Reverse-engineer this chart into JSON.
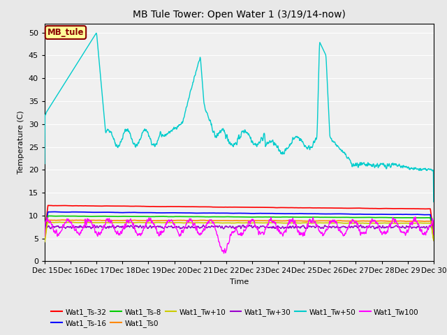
{
  "title": "MB Tule Tower: Open Water 1 (3/19/14-now)",
  "xlabel": "Time",
  "ylabel": "Temperature (C)",
  "ylim": [
    0,
    52
  ],
  "yticks": [
    0,
    5,
    10,
    15,
    20,
    25,
    30,
    35,
    40,
    45,
    50
  ],
  "bg_color": "#e8e8e8",
  "plot_bg": "#f0f0f0",
  "annotation_box": {
    "text": "MB_tule",
    "facecolor": "#ffff99",
    "edgecolor": "#8B0000",
    "textcolor": "#8B0000"
  },
  "x_start": 15,
  "x_end": 30,
  "x_ticks": [
    15,
    16,
    17,
    18,
    19,
    20,
    21,
    22,
    23,
    24,
    25,
    26,
    27,
    28,
    29,
    30
  ],
  "x_tick_labels": [
    "Dec 15",
    "Dec 16",
    "Dec 17",
    "Dec 18",
    "Dec 19",
    "Dec 20",
    "Dec 21",
    "Dec 22",
    "Dec 23",
    "Dec 24",
    "Dec 25",
    "Dec 26",
    "Dec 27",
    "Dec 28",
    "Dec 29",
    "Dec 30"
  ],
  "series_colors": {
    "ts32": "#ff0000",
    "ts16": "#0000ff",
    "ts8": "#00cc00",
    "ts0": "#ff8800",
    "tw10": "#cccc00",
    "tw30": "#9900cc",
    "tw50": "#00cccc",
    "tw100": "#ff00ff"
  },
  "legend_row1": [
    {
      "color": "#ff0000",
      "label": "Wat1_Ts-32"
    },
    {
      "color": "#0000ff",
      "label": "Wat1_Ts-16"
    },
    {
      "color": "#00cc00",
      "label": "Wat1_Ts-8"
    },
    {
      "color": "#ff8800",
      "label": "Wat1_Ts0"
    },
    {
      "color": "#cccc00",
      "label": "Wat1_Tw+10"
    },
    {
      "color": "#9900cc",
      "label": "Wat1_Tw+30"
    }
  ],
  "legend_row2": [
    {
      "color": "#00cccc",
      "label": "Wat1_Tw+50"
    },
    {
      "color": "#ff00ff",
      "label": "Wat1_Tw100"
    }
  ]
}
